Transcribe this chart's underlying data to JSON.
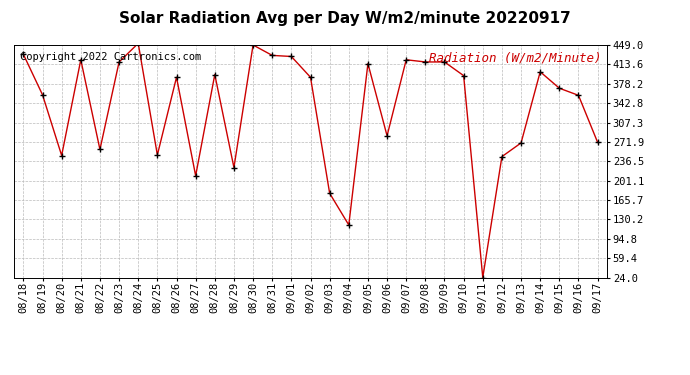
{
  "title": "Solar Radiation Avg per Day W/m2/minute 20220917",
  "copyright": "Copyright 2022 Cartronics.com",
  "legend_label": "Radiation (W/m2/Minute)",
  "dates": [
    "08/18",
    "08/19",
    "08/20",
    "08/21",
    "08/22",
    "08/23",
    "08/24",
    "08/25",
    "08/26",
    "08/27",
    "08/28",
    "08/29",
    "08/30",
    "08/31",
    "09/01",
    "09/02",
    "09/03",
    "09/04",
    "09/05",
    "09/06",
    "09/07",
    "09/08",
    "09/09",
    "09/10",
    "09/11",
    "09/12",
    "09/13",
    "09/14",
    "09/15",
    "09/16",
    "09/17"
  ],
  "values": [
    432,
    358,
    247,
    422,
    258,
    418,
    452,
    248,
    390,
    210,
    395,
    225,
    449,
    430,
    428,
    390,
    178,
    120,
    415,
    283,
    422,
    418,
    418,
    393,
    24,
    245,
    270,
    400,
    370,
    357,
    271
  ],
  "line_color": "#cc0000",
  "marker_color": "#000000",
  "grid_color": "#bbbbbb",
  "bg_color": "#ffffff",
  "plot_bg_color": "#ffffff",
  "title_fontsize": 11,
  "tick_fontsize": 7.5,
  "copyright_fontsize": 7.5,
  "legend_fontsize": 9,
  "y_ticks": [
    24.0,
    59.4,
    94.8,
    130.2,
    165.7,
    201.1,
    236.5,
    271.9,
    307.3,
    342.8,
    378.2,
    413.6,
    449.0
  ],
  "ylim_min": 24.0,
  "ylim_max": 449.0
}
